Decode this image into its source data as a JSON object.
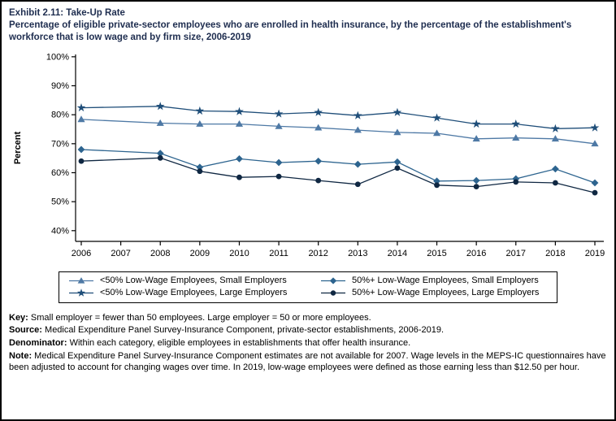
{
  "header": {
    "title": "Exhibit 2.11: Take-Up Rate",
    "subtitle": "Percentage of eligible private-sector employees who are enrolled in health insurance, by the percentage of the establishment's workforce that is low wage and by firm size, 2006-2019"
  },
  "chart_data": {
    "type": "line",
    "title": "Exhibit 2.11: Take-Up Rate",
    "xlabel": "",
    "ylabel": "Percent",
    "ylim": [
      40,
      100
    ],
    "ytick_step": 10,
    "ytick_suffix": "%",
    "grid": false,
    "legend_position": "bottom-box",
    "years": [
      2006,
      2007,
      2008,
      2009,
      2010,
      2011,
      2012,
      2013,
      2014,
      2015,
      2016,
      2017,
      2018,
      2019
    ],
    "missing_years": [
      2007
    ],
    "series": [
      {
        "name": "<50% Low-Wage Employees, Small Employers",
        "marker": "triangle",
        "color": "#4e79a5",
        "values": [
          78.4,
          null,
          77.1,
          76.8,
          76.8,
          76.0,
          75.5,
          74.7,
          73.9,
          73.6,
          71.7,
          72.0,
          71.7,
          70.0
        ]
      },
      {
        "name": "<50% Low-Wage Employees, Large Employers",
        "marker": "star",
        "color": "#1f4e79",
        "values": [
          82.4,
          null,
          82.9,
          81.3,
          81.1,
          80.3,
          80.8,
          79.7,
          80.8,
          78.9,
          76.8,
          76.8,
          75.2,
          75.5
        ]
      },
      {
        "name": "50%+ Low-Wage Employees, Small Employers",
        "marker": "diamond",
        "color": "#2d648f",
        "values": [
          68.0,
          null,
          66.7,
          61.9,
          64.8,
          63.5,
          64.0,
          62.9,
          63.7,
          57.1,
          57.3,
          57.9,
          61.3,
          56.5
        ]
      },
      {
        "name": "50%+ Low-Wage Employees, Large Employers",
        "marker": "circle",
        "color": "#0f2742",
        "values": [
          64.0,
          null,
          65.1,
          60.5,
          58.4,
          58.7,
          57.3,
          56.0,
          61.6,
          55.7,
          55.2,
          56.8,
          56.5,
          53.1
        ]
      }
    ],
    "legend_order": [
      0,
      2,
      1,
      3
    ]
  },
  "footer": {
    "items": [
      {
        "label": "Key:",
        "text": "Small employer = fewer than 50 employees. Large employer = 50 or more employees."
      },
      {
        "label": "Source:",
        "text": "Medical Expenditure Panel Survey-Insurance Component, private-sector establishments, 2006-2019."
      },
      {
        "label": "Denominator:",
        "text": "Within each category, eligible employees in establishments that offer health insurance."
      },
      {
        "label": "Note:",
        "text": "Medical Expenditure Panel Survey-Insurance Component estimates are not available for 2007. Wage levels in the MEPS-IC questionnaires have been adjusted to account for changing wages over time. In 2019, low-wage employees were defined as those earning less than $12.50 per hour."
      }
    ]
  }
}
